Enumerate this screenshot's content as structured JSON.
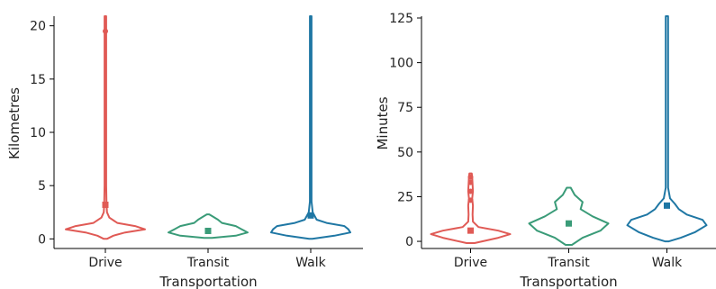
{
  "colors": {
    "Drive": "#e05a55",
    "Transit": "#3a9b78",
    "Walk": "#1f77a4"
  },
  "chart_data": [
    {
      "type": "violin",
      "xlabel": "Transportation",
      "ylabel": "Kilometres",
      "categories": [
        "Drive",
        "Transit",
        "Walk"
      ],
      "ylim": [
        -0.9,
        20.9
      ],
      "yticks": [
        0,
        5,
        10,
        15,
        20
      ],
      "grid": false,
      "legend": "none",
      "series": [
        {
          "category": "Drive",
          "min": 0,
          "max": 20.9,
          "mean": 3.2,
          "outliers": [
            19.5
          ],
          "density": [
            [
              0,
              0.04
            ],
            [
              0.3,
              0.2
            ],
            [
              0.6,
              0.5
            ],
            [
              0.9,
              1.0
            ],
            [
              1.2,
              0.75
            ],
            [
              1.5,
              0.3
            ],
            [
              2.0,
              0.1
            ],
            [
              2.5,
              0.04
            ],
            [
              3.2,
              0.03
            ],
            [
              5,
              0.02
            ],
            [
              20.9,
              0.02
            ]
          ]
        },
        {
          "category": "Transit",
          "min": 0.1,
          "max": 2.3,
          "mean": 0.75,
          "outliers": [],
          "density": [
            [
              0.1,
              0.1
            ],
            [
              0.3,
              0.7
            ],
            [
              0.6,
              1.0
            ],
            [
              0.9,
              0.85
            ],
            [
              1.2,
              0.7
            ],
            [
              1.5,
              0.35
            ],
            [
              1.8,
              0.25
            ],
            [
              2.1,
              0.12
            ],
            [
              2.3,
              0.03
            ]
          ]
        },
        {
          "category": "Walk",
          "min": 0,
          "max": 20.9,
          "mean": 2.2,
          "outliers": [],
          "density": [
            [
              0,
              0.04
            ],
            [
              0.3,
              0.6
            ],
            [
              0.6,
              1.0
            ],
            [
              0.9,
              0.95
            ],
            [
              1.2,
              0.85
            ],
            [
              1.5,
              0.4
            ],
            [
              1.8,
              0.15
            ],
            [
              2.5,
              0.05
            ],
            [
              3.5,
              0.02
            ],
            [
              20.9,
              0.02
            ]
          ]
        }
      ]
    },
    {
      "type": "violin",
      "xlabel": "Transportation",
      "ylabel": "Minutes",
      "categories": [
        "Drive",
        "Transit",
        "Walk"
      ],
      "ylim": [
        -4,
        126
      ],
      "yticks": [
        0,
        25,
        50,
        75,
        100,
        125
      ],
      "grid": false,
      "legend": "none",
      "series": [
        {
          "category": "Drive",
          "min": -1,
          "max": 38,
          "mean": 6,
          "outliers": [
            33,
            28,
            23,
            36
          ],
          "density": [
            [
              -1,
              0.1
            ],
            [
              2,
              0.7
            ],
            [
              4,
              1.0
            ],
            [
              6,
              0.7
            ],
            [
              8,
              0.2
            ],
            [
              11,
              0.06
            ],
            [
              15,
              0.05
            ],
            [
              20,
              0.06
            ],
            [
              24,
              0.04
            ],
            [
              28,
              0.06
            ],
            [
              32,
              0.05
            ],
            [
              36,
              0.04
            ],
            [
              38,
              0.03
            ]
          ]
        },
        {
          "category": "Transit",
          "min": -2,
          "max": 30,
          "mean": 10,
          "outliers": [],
          "density": [
            [
              -2,
              0.08
            ],
            [
              2,
              0.35
            ],
            [
              6,
              0.8
            ],
            [
              10,
              1.0
            ],
            [
              14,
              0.6
            ],
            [
              18,
              0.3
            ],
            [
              22,
              0.35
            ],
            [
              26,
              0.15
            ],
            [
              30,
              0.05
            ]
          ]
        },
        {
          "category": "Walk",
          "min": 0,
          "max": 126,
          "mean": 20,
          "outliers": [],
          "density": [
            [
              0,
              0.05
            ],
            [
              2,
              0.35
            ],
            [
              5,
              0.7
            ],
            [
              9,
              1.0
            ],
            [
              12,
              0.9
            ],
            [
              15,
              0.5
            ],
            [
              18,
              0.3
            ],
            [
              21,
              0.2
            ],
            [
              24,
              0.08
            ],
            [
              30,
              0.03
            ],
            [
              126,
              0.03
            ]
          ]
        }
      ]
    }
  ]
}
